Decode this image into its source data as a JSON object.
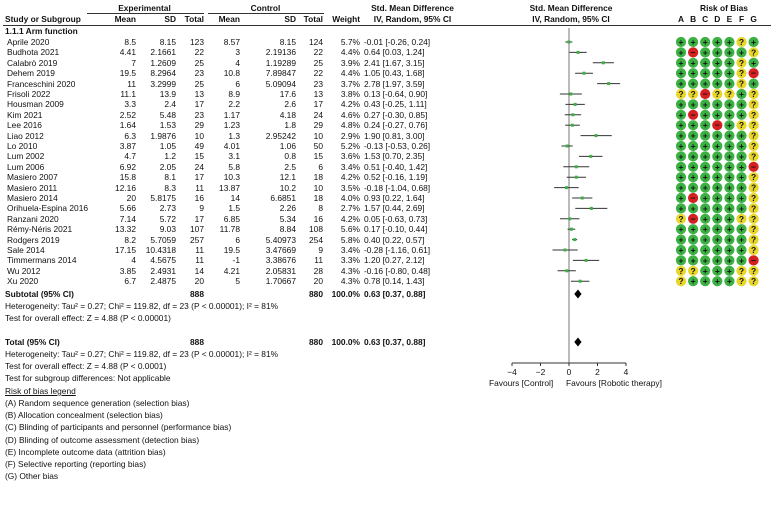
{
  "header": {
    "group1": "Experimental",
    "group2": "Control",
    "smd_title": "Std. Mean Difference",
    "plot_title": "Std. Mean Difference",
    "rob_title": "Risk of Bias",
    "col_study": "Study or Subgroup",
    "col_mean": "Mean",
    "col_sd": "SD",
    "col_total": "Total",
    "col_weight": "Weight",
    "col_ci": "IV, Random, 95% CI",
    "plot_ci": "IV, Random, 95% CI",
    "rob_letters": [
      "A",
      "B",
      "C",
      "D",
      "E",
      "F",
      "G"
    ]
  },
  "subgroup_title": "1.1.1 Arm function",
  "studies": [
    {
      "name": "Aprile 2020",
      "em": "8.5",
      "esd": "8.15",
      "et": "123",
      "cm": "8.57",
      "csd": "8.15",
      "ct": "124",
      "w": "5.7%",
      "ci": "-0.01 [-0.26, 0.24]",
      "smd": -0.01,
      "lo": -0.26,
      "hi": 0.24,
      "rob": "+++++?+"
    },
    {
      "name": "Budhota 2021",
      "em": "4.41",
      "esd": "2.1661",
      "et": "22",
      "cm": "3",
      "csd": "2.19136",
      "ct": "22",
      "w": "4.4%",
      "ci": "0.64 [0.03, 1.24]",
      "smd": 0.64,
      "lo": 0.03,
      "hi": 1.24,
      "rob": "+-++++?"
    },
    {
      "name": "Calabrò 2019",
      "em": "7",
      "esd": "1.2609",
      "et": "25",
      "cm": "4",
      "csd": "1.19289",
      "ct": "25",
      "w": "3.9%",
      "ci": "2.41 [1.67, 3.15]",
      "smd": 2.41,
      "lo": 1.67,
      "hi": 3.15,
      "rob": "+++++?+"
    },
    {
      "name": "Dehem 2019",
      "em": "19.5",
      "esd": "8.2964",
      "et": "23",
      "cm": "10.8",
      "csd": "7.89847",
      "ct": "22",
      "w": "4.4%",
      "ci": "1.05 [0.43, 1.68]",
      "smd": 1.05,
      "lo": 0.43,
      "hi": 1.68,
      "rob": "+++++?-"
    },
    {
      "name": "Franceschini 2020",
      "em": "11",
      "esd": "3.2999",
      "et": "25",
      "cm": "6",
      "csd": "5.09094",
      "ct": "23",
      "w": "3.7%",
      "ci": "2.78 [1.97, 3.59]",
      "smd": 2.78,
      "lo": 1.97,
      "hi": 3.59,
      "rob": "+++++?+"
    },
    {
      "name": "Frisoli 2022",
      "em": "11.1",
      "esd": "13.9",
      "et": "13",
      "cm": "8.9",
      "csd": "17.6",
      "ct": "13",
      "w": "3.8%",
      "ci": "0.13 [-0.64, 0.90]",
      "smd": 0.13,
      "lo": -0.64,
      "hi": 0.9,
      "rob": "??-??+?"
    },
    {
      "name": "Housman 2009",
      "em": "3.3",
      "esd": "2.4",
      "et": "17",
      "cm": "2.2",
      "csd": "2.6",
      "ct": "17",
      "w": "4.2%",
      "ci": "0.43 [-0.25, 1.11]",
      "smd": 0.43,
      "lo": -0.25,
      "hi": 1.11,
      "rob": "++++++?"
    },
    {
      "name": "Kim 2021",
      "em": "2.52",
      "esd": "5.48",
      "et": "23",
      "cm": "1.17",
      "csd": "4.18",
      "ct": "24",
      "w": "4.6%",
      "ci": "0.27 [-0.30, 0.85]",
      "smd": 0.27,
      "lo": -0.3,
      "hi": 0.85,
      "rob": "+-++++?"
    },
    {
      "name": "Lee 2016",
      "em": "1.64",
      "esd": "1.53",
      "et": "29",
      "cm": "1.23",
      "csd": "1.8",
      "ct": "29",
      "w": "4.8%",
      "ci": "0.24 [-0.27, 0.76]",
      "smd": 0.24,
      "lo": -0.27,
      "hi": 0.76,
      "rob": "+++-+??"
    },
    {
      "name": "Liao 2012",
      "em": "6.3",
      "esd": "1.9876",
      "et": "10",
      "cm": "1.3",
      "csd": "2.95242",
      "ct": "10",
      "w": "2.9%",
      "ci": "1.90 [0.81, 3.00]",
      "smd": 1.9,
      "lo": 0.81,
      "hi": 3.0,
      "rob": "++++++?"
    },
    {
      "name": "Lo 2010",
      "em": "3.87",
      "esd": "1.05",
      "et": "49",
      "cm": "4.01",
      "csd": "1.06",
      "ct": "50",
      "w": "5.2%",
      "ci": "-0.13 [-0.53, 0.26]",
      "smd": -0.13,
      "lo": -0.53,
      "hi": 0.26,
      "rob": "++++++?"
    },
    {
      "name": "Lum 2002",
      "em": "4.7",
      "esd": "1.2",
      "et": "15",
      "cm": "3.1",
      "csd": "0.8",
      "ct": "15",
      "w": "3.6%",
      "ci": "1.53 [0.70, 2.35]",
      "smd": 1.53,
      "lo": 0.7,
      "hi": 2.35,
      "rob": "++++++?"
    },
    {
      "name": "Lum 2006",
      "em": "6.92",
      "esd": "2.05",
      "et": "24",
      "cm": "5.8",
      "csd": "2.5",
      "ct": "6",
      "w": "3.4%",
      "ci": "0.51 [-0.40, 1.42]",
      "smd": 0.51,
      "lo": -0.4,
      "hi": 1.42,
      "rob": "++++++-"
    },
    {
      "name": "Masiero 2007",
      "em": "15.8",
      "esd": "8.1",
      "et": "17",
      "cm": "10.3",
      "csd": "12.1",
      "ct": "18",
      "w": "4.2%",
      "ci": "0.52 [-0.16, 1.19]",
      "smd": 0.52,
      "lo": -0.16,
      "hi": 1.19,
      "rob": "++++++?"
    },
    {
      "name": "Masiero 2011",
      "em": "12.16",
      "esd": "8.3",
      "et": "11",
      "cm": "13.87",
      "csd": "10.2",
      "ct": "10",
      "w": "3.5%",
      "ci": "-0.18 [-1.04, 0.68]",
      "smd": -0.18,
      "lo": -1.04,
      "hi": 0.68,
      "rob": "++++++?"
    },
    {
      "name": "Masiero 2014",
      "em": "20",
      "esd": "5.8175",
      "et": "16",
      "cm": "14",
      "csd": "6.6851",
      "ct": "18",
      "w": "4.0%",
      "ci": "0.93 [0.22, 1.64]",
      "smd": 0.93,
      "lo": 0.22,
      "hi": 1.64,
      "rob": "+-++++?"
    },
    {
      "name": "Orihuela-Espina 2016",
      "em": "5.66",
      "esd": "2.73",
      "et": "9",
      "cm": "1.5",
      "csd": "2.26",
      "ct": "8",
      "w": "2.7%",
      "ci": "1.57 [0.44, 2.69]",
      "smd": 1.57,
      "lo": 0.44,
      "hi": 2.69,
      "rob": "++++++?"
    },
    {
      "name": "Ranzani 2020",
      "em": "7.14",
      "esd": "5.72",
      "et": "17",
      "cm": "6.85",
      "csd": "5.34",
      "ct": "16",
      "w": "4.2%",
      "ci": "0.05 [-0.63, 0.73]",
      "smd": 0.05,
      "lo": -0.63,
      "hi": 0.73,
      "rob": "?-+++??"
    },
    {
      "name": "Rémy-Néris 2021",
      "em": "13.32",
      "esd": "9.03",
      "et": "107",
      "cm": "11.78",
      "csd": "8.84",
      "ct": "108",
      "w": "5.6%",
      "ci": "0.17 [-0.10, 0.44]",
      "smd": 0.17,
      "lo": -0.1,
      "hi": 0.44,
      "rob": "++++++?"
    },
    {
      "name": "Rodgers 2019",
      "em": "8.2",
      "esd": "5.7059",
      "et": "257",
      "cm": "6",
      "csd": "5.40973",
      "ct": "254",
      "w": "5.8%",
      "ci": "0.40 [0.22, 0.57]",
      "smd": 0.4,
      "lo": 0.22,
      "hi": 0.57,
      "rob": "++++++?"
    },
    {
      "name": "Sale 2014",
      "em": "17.15",
      "esd": "10.4318",
      "et": "11",
      "cm": "19.5",
      "csd": "3.47669",
      "ct": "9",
      "w": "3.4%",
      "ci": "-0.28 [-1.16, 0.61]",
      "smd": -0.28,
      "lo": -1.16,
      "hi": 0.61,
      "rob": "++++++?"
    },
    {
      "name": "Timmermans 2014",
      "em": "4",
      "esd": "4.5675",
      "et": "11",
      "cm": "-1",
      "csd": "3.38676",
      "ct": "11",
      "w": "3.3%",
      "ci": "1.20 [0.27, 2.12]",
      "smd": 1.2,
      "lo": 0.27,
      "hi": 2.12,
      "rob": "++++++-"
    },
    {
      "name": "Wu 2012",
      "em": "3.85",
      "esd": "2.4931",
      "et": "14",
      "cm": "4.21",
      "csd": "2.05831",
      "ct": "28",
      "w": "4.3%",
      "ci": "-0.16 [-0.80, 0.48]",
      "smd": -0.16,
      "lo": -0.8,
      "hi": 0.48,
      "rob": "??+++??"
    },
    {
      "name": "Xu 2020",
      "em": "6.7",
      "esd": "2.4875",
      "et": "20",
      "cm": "5",
      "csd": "1.70667",
      "ct": "20",
      "w": "4.3%",
      "ci": "0.78 [0.14, 1.43]",
      "smd": 0.78,
      "lo": 0.14,
      "hi": 1.43,
      "rob": "?++++??"
    }
  ],
  "subtotal": {
    "label": "Subtotal (95% CI)",
    "et": "888",
    "ct": "880",
    "w": "100.0%",
    "ci": "0.63 [0.37, 0.88]",
    "smd": 0.63,
    "lo": 0.37,
    "hi": 0.88
  },
  "sub_het": "Heterogeneity: Tau² = 0.27; Chi² = 119.82, df = 23 (P < 0.00001); I² = 81%",
  "sub_effect": "Test for overall effect: Z = 4.88 (P < 0.00001)",
  "total": {
    "label": "Total (95% CI)",
    "et": "888",
    "ct": "880",
    "w": "100.0%",
    "ci": "0.63 [0.37, 0.88]",
    "smd": 0.63,
    "lo": 0.37,
    "hi": 0.88
  },
  "tot_het": "Heterogeneity: Tau² = 0.27; Chi² = 119.82, df = 23 (P < 0.00001); I² = 81%",
  "tot_effect": "Test for overall effect: Z = 4.88 (P < 0.0001)",
  "tot_subgroup": "Test for subgroup differences: Not applicable",
  "chart_data": {
    "type": "forest",
    "xlim": [
      -4,
      4
    ],
    "ticks": [
      -4,
      -2,
      0,
      2,
      4
    ],
    "tick_labels": [
      "−4",
      "−2",
      "0",
      "2",
      "4"
    ],
    "xlabel_left": "Favours [Control]",
    "xlabel_right": "Favours [Robotic therapy]"
  },
  "legend": {
    "title": "Risk of bias legend",
    "items": [
      {
        "key": "(A)",
        "text": "Random sequence generation (selection bias)"
      },
      {
        "key": "(B)",
        "text": "Allocation concealment (selection bias)"
      },
      {
        "key": "(C)",
        "text": "Blinding of participants and personnel (performance bias)"
      },
      {
        "key": "(D)",
        "text": "Blinding of outcome assessment (detection bias)"
      },
      {
        "key": "(E)",
        "text": "Incomplete outcome data (attrition bias)"
      },
      {
        "key": "(F)",
        "text": "Selective reporting (reporting bias)"
      },
      {
        "key": "(G)",
        "text": "Other bias"
      }
    ]
  },
  "colors": {
    "low": "#3cb043",
    "unclear": "#e8d62a",
    "high": "#d42020",
    "point": "#3cb043",
    "line": "#333333"
  }
}
